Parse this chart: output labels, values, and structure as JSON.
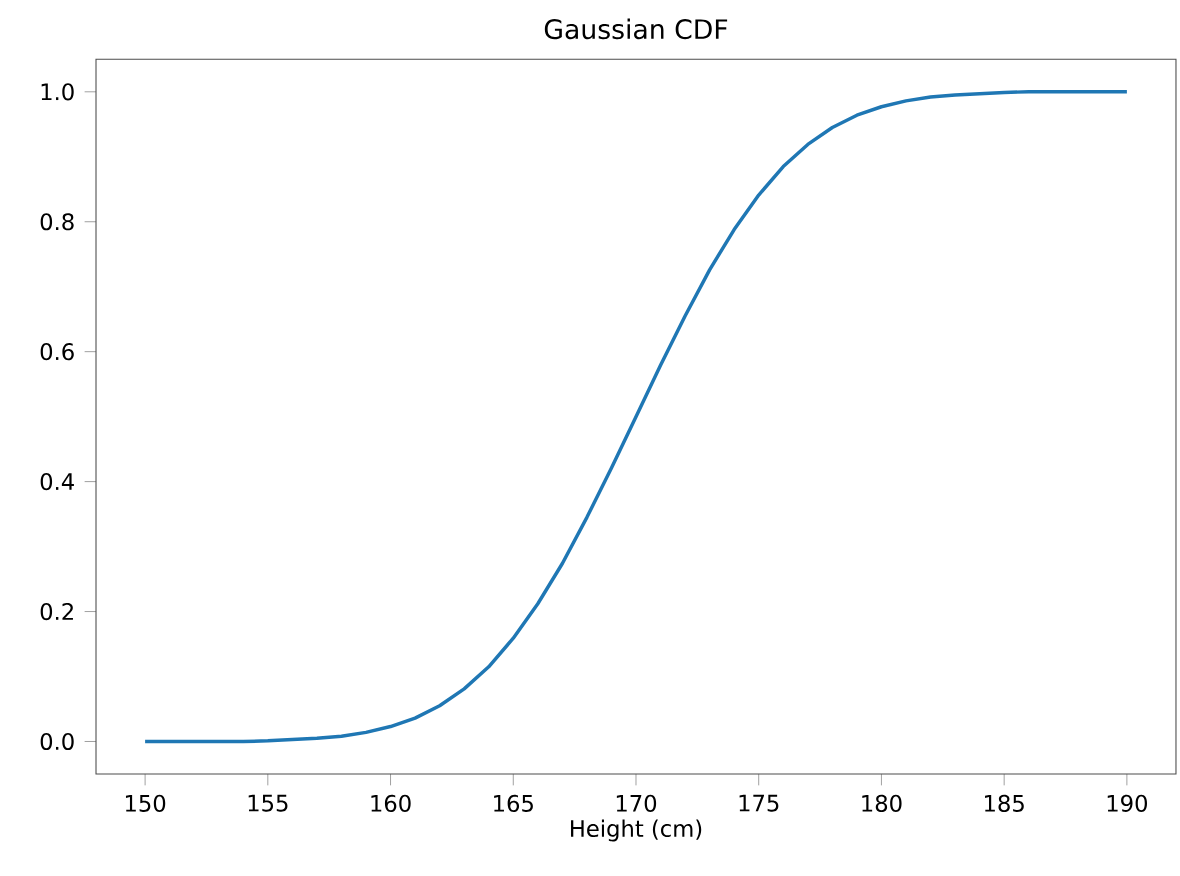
{
  "chart_data": {
    "type": "line",
    "title": "Gaussian CDF",
    "xlabel": "Height (cm)",
    "x": [
      150,
      152,
      154,
      155,
      156,
      157,
      158,
      159,
      160,
      161,
      162,
      163,
      164,
      165,
      166,
      167,
      168,
      169,
      170,
      171,
      172,
      173,
      174,
      175,
      176,
      177,
      178,
      179,
      180,
      181,
      182,
      183,
      184,
      185,
      186,
      188,
      190
    ],
    "series": [
      {
        "color": "#1f77b4",
        "values": [
          0.0,
          0.0,
          0.0,
          0.001,
          0.003,
          0.005,
          0.008,
          0.014,
          0.023,
          0.036,
          0.055,
          0.081,
          0.115,
          0.159,
          0.212,
          0.274,
          0.345,
          0.421,
          0.5,
          0.579,
          0.655,
          0.726,
          0.788,
          0.841,
          0.885,
          0.919,
          0.945,
          0.964,
          0.977,
          0.986,
          0.992,
          0.995,
          0.997,
          0.999,
          1.0,
          1.0,
          1.0
        ]
      }
    ],
    "xlim": [
      148,
      192
    ],
    "ylim": [
      -0.05,
      1.05
    ],
    "xticks": [
      150,
      155,
      160,
      165,
      170,
      175,
      180,
      185,
      190
    ],
    "yticks": [
      {
        "value": 0,
        "label": "0.0"
      },
      {
        "value": 0.2,
        "label": "0.2"
      },
      {
        "value": 0.4,
        "label": "0.4"
      },
      {
        "value": 0.6,
        "label": "0.6"
      },
      {
        "value": 0.8,
        "label": "0.8"
      },
      {
        "value": 1,
        "label": "1.0"
      }
    ],
    "marker": "none",
    "line_style": "solid"
  }
}
